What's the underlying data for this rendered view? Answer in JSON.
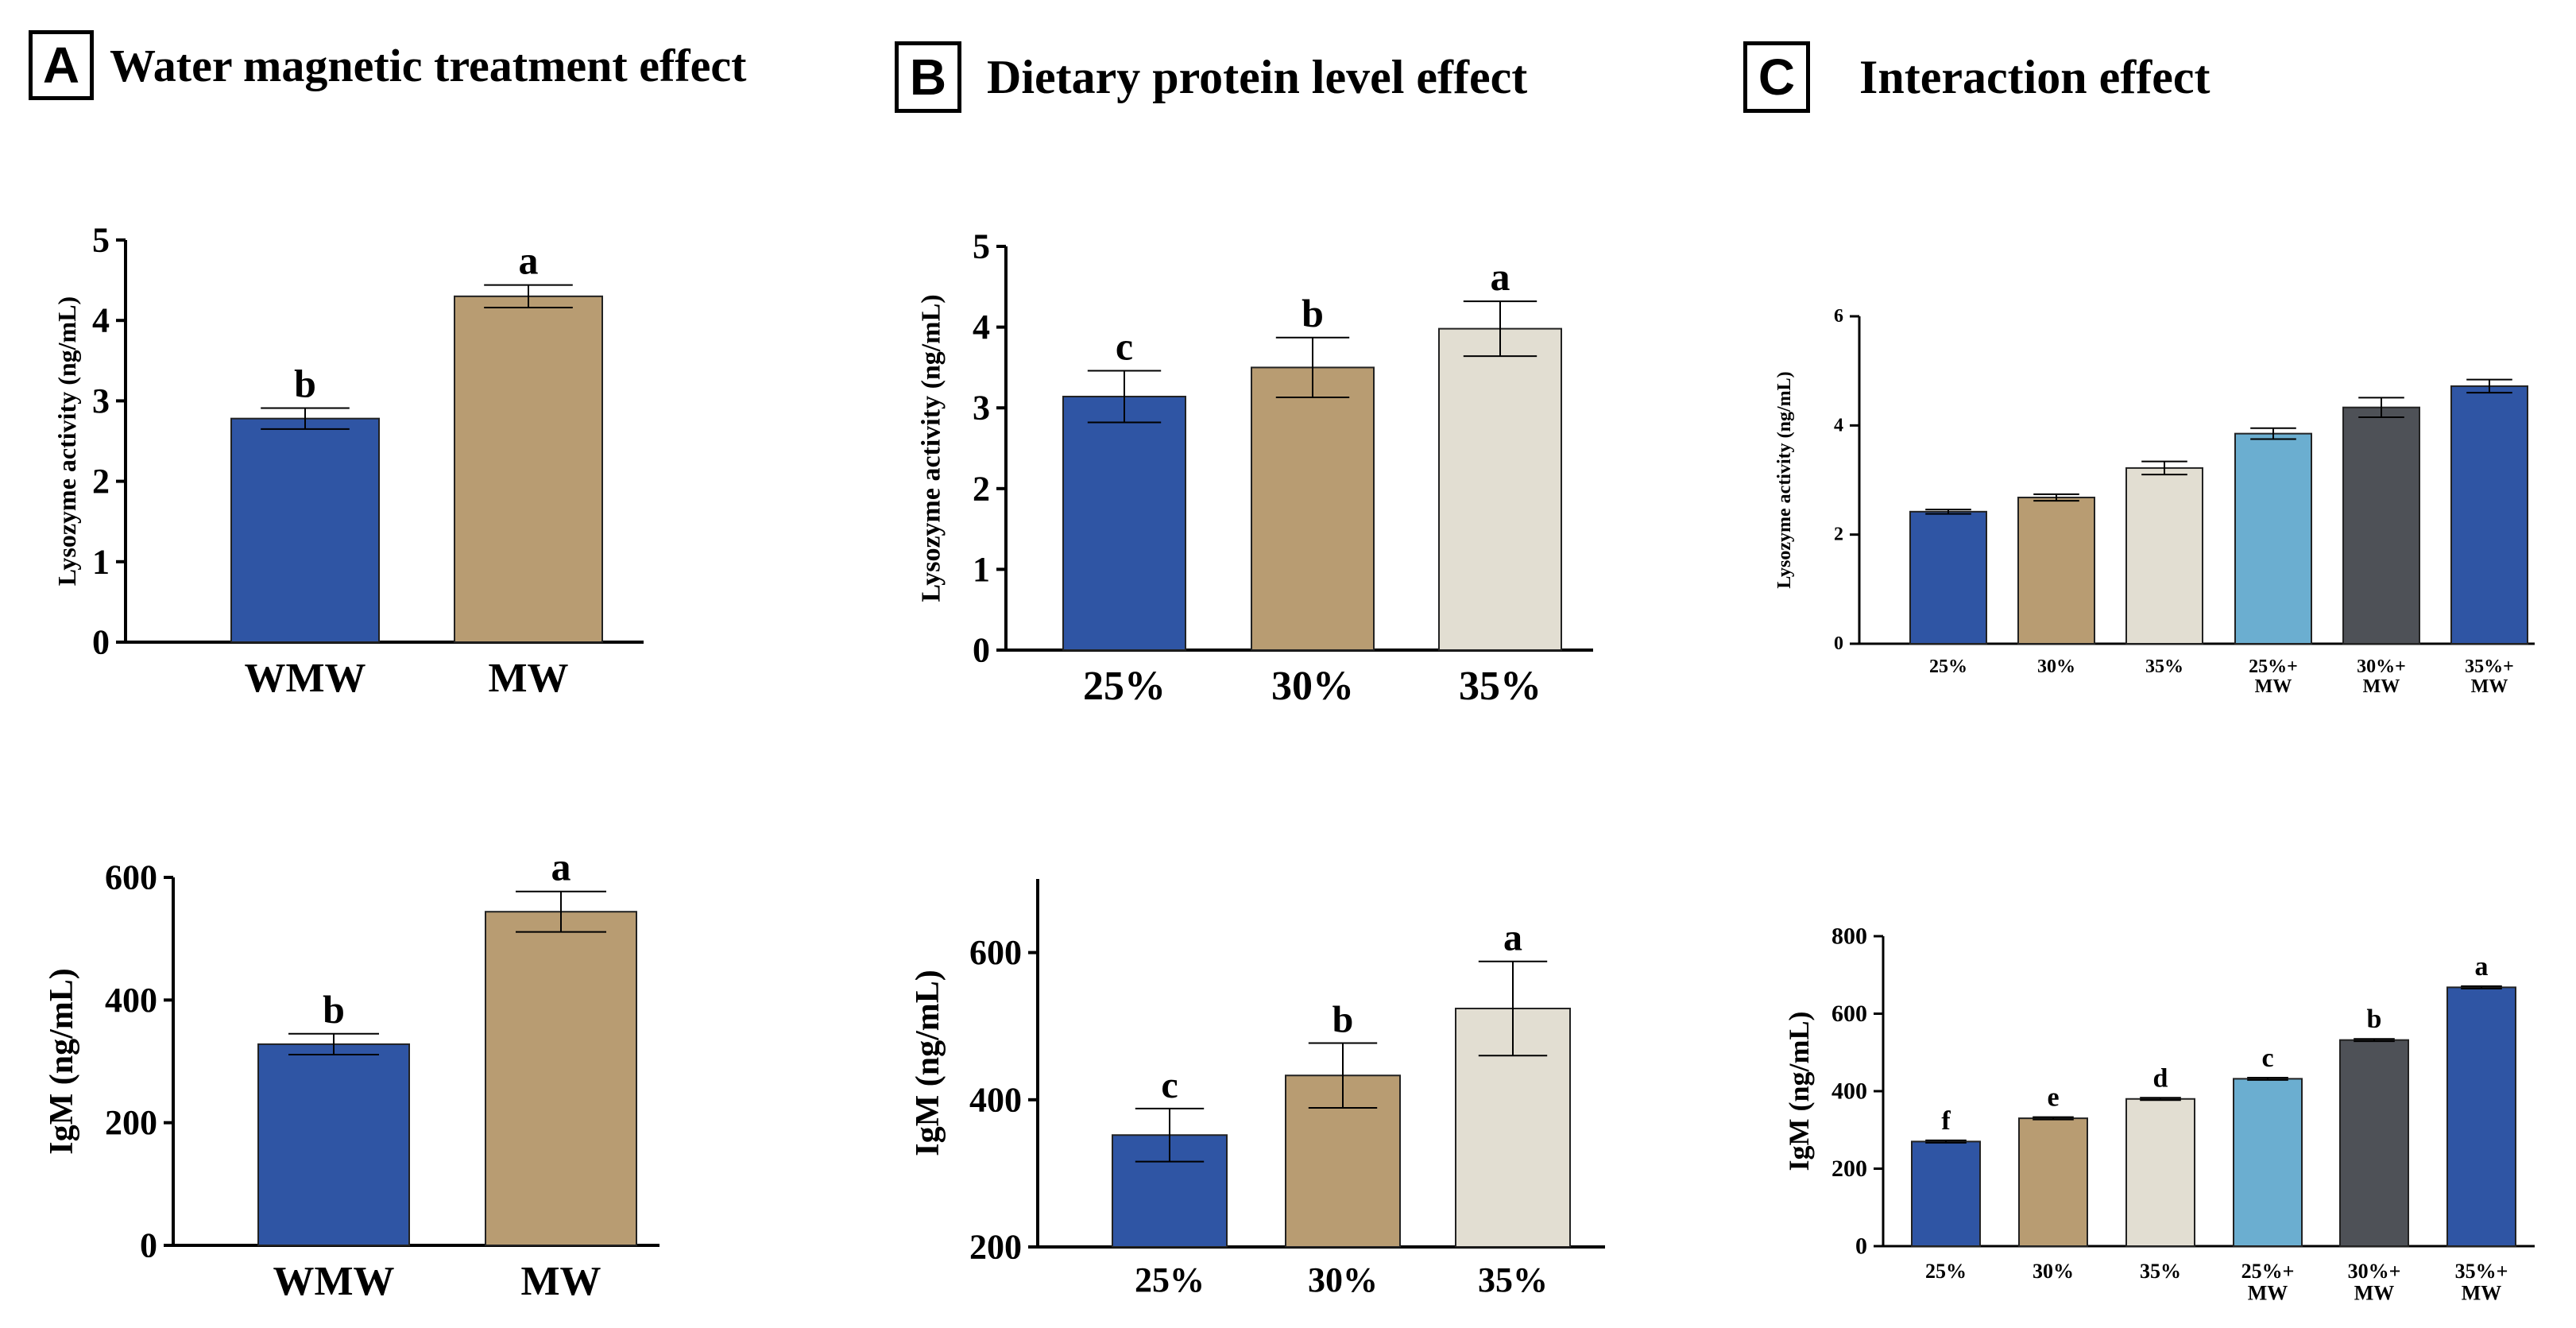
{
  "panels": [
    {
      "letter": "A",
      "title": "Water magnetic treatment effect"
    },
    {
      "letter": "B",
      "title": "Dietary protein level effect"
    },
    {
      "letter": "C",
      "title": "Interaction effect"
    }
  ],
  "colors": {
    "blue": "#2F55A4",
    "tan": "#B89C72",
    "light": "#E2DED2",
    "skyblue": "#6BAED0",
    "dark": "#4E5157",
    "axis": "#000000"
  },
  "chart_data": [
    {
      "id": "A-lysozyme",
      "type": "bar",
      "panel": "A",
      "ylabel": "Lysozyme activity (ng/mL)",
      "categories": [
        "WMW",
        "MW"
      ],
      "values": [
        2.78,
        4.3
      ],
      "errors": [
        0.13,
        0.14
      ],
      "letters": [
        "b",
        "a"
      ],
      "colors": [
        "blue",
        "tan"
      ],
      "ylim": [
        0,
        5
      ],
      "yticks": [
        0,
        1,
        2,
        3,
        4,
        5
      ]
    },
    {
      "id": "B-lysozyme",
      "type": "bar",
      "panel": "B",
      "ylabel": "Lysozyme activity (ng/mL)",
      "categories": [
        "25%",
        "30%",
        "35%"
      ],
      "values": [
        3.14,
        3.5,
        3.98
      ],
      "errors": [
        0.32,
        0.37,
        0.34
      ],
      "letters": [
        "c",
        "b",
        "a"
      ],
      "colors": [
        "blue",
        "tan",
        "light"
      ],
      "ylim": [
        0,
        5
      ],
      "yticks": [
        0,
        1,
        2,
        3,
        4,
        5
      ]
    },
    {
      "id": "C-lysozyme",
      "type": "bar",
      "panel": "C",
      "ylabel": "Lysozyme activity (ng/mL)",
      "categories": [
        "25%",
        "30%",
        "35%",
        "25%+\nMW",
        "30%+\nMW",
        "35%+\nMW"
      ],
      "values": [
        2.42,
        2.68,
        3.22,
        3.85,
        4.33,
        4.72
      ],
      "errors": [
        0.04,
        0.06,
        0.12,
        0.1,
        0.18,
        0.12
      ],
      "letters": [],
      "colors": [
        "blue",
        "tan",
        "light",
        "skyblue",
        "dark",
        "blue"
      ],
      "ylim": [
        0,
        6
      ],
      "yticks": [
        0,
        2,
        4,
        6
      ]
    },
    {
      "id": "A-igm",
      "type": "bar",
      "panel": "A",
      "ylabel": "IgM (ng/mL)",
      "categories": [
        "WMW",
        "MW"
      ],
      "values": [
        328,
        544
      ],
      "errors": [
        17,
        33
      ],
      "letters": [
        "b",
        "a"
      ],
      "colors": [
        "blue",
        "tan"
      ],
      "ylim": [
        0,
        600
      ],
      "yticks": [
        0,
        200,
        400,
        600
      ]
    },
    {
      "id": "B-igm",
      "type": "bar",
      "panel": "B",
      "ylabel": "IgM (ng/mL)",
      "categories": [
        "25%",
        "30%",
        "35%"
      ],
      "values": [
        352,
        433,
        524
      ],
      "errors": [
        36,
        44,
        64
      ],
      "letters": [
        "c",
        "b",
        "a"
      ],
      "colors": [
        "blue",
        "tan",
        "light"
      ],
      "ylim": [
        200,
        700
      ],
      "yticks": [
        200,
        400,
        600
      ]
    },
    {
      "id": "C-igm",
      "type": "bar",
      "panel": "C",
      "ylabel": "IgM (ng/mL)",
      "categories": [
        "25%",
        "30%",
        "35%",
        "25%+\nMW",
        "30%+\nMW",
        "35%+\nMW"
      ],
      "values": [
        270,
        330,
        380,
        432,
        532,
        668
      ],
      "errors": [
        3,
        3,
        3,
        3,
        3,
        3
      ],
      "letters": [
        "f",
        "e",
        "d",
        "c",
        "b",
        "a"
      ],
      "colors": [
        "blue",
        "tan",
        "light",
        "skyblue",
        "dark",
        "blue"
      ],
      "ylim": [
        0,
        800
      ],
      "yticks": [
        0,
        200,
        400,
        600,
        800
      ]
    }
  ]
}
